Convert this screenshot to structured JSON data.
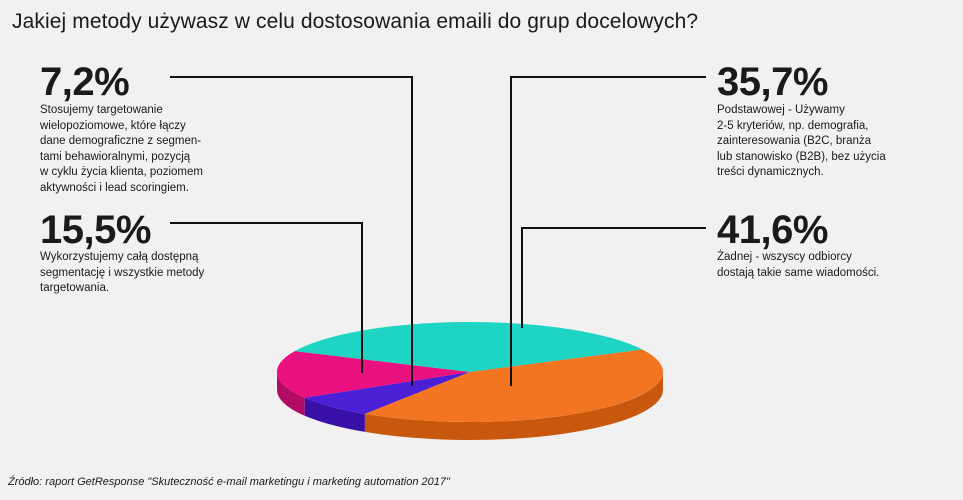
{
  "title": "Jakiej metody używasz w celu dostosowania emaili do grup docelowych?",
  "source": "Źródło: raport GetResponse \"Skuteczność e-mail marketingu i marketing automation 2017\"",
  "chart_data": {
    "type": "pie",
    "unit": "%",
    "slices": [
      {
        "label": "7,2%",
        "value": 7.2,
        "color": "#4a1fd6",
        "side_color": "#3810a8",
        "description": [
          "Stosujemy targetowanie",
          "wielopoziomowe, które łączy",
          "dane demograficzne z segmen-",
          "tami behawioralnymi, pozycją",
          "w cyklu życia klienta, poziomem",
          "aktywności i lead scoringiem."
        ]
      },
      {
        "label": "15,5%",
        "value": 15.5,
        "color": "#e8117f",
        "side_color": "#b00d62",
        "description": [
          "Wykorzystujemy całą dostępną",
          "segmentację i wszystkie metody",
          "targetowania."
        ]
      },
      {
        "label": "35,7%",
        "value": 35.7,
        "color": "#1ed4c2",
        "side_color": "#14a596",
        "description": [
          "Podstawowej - Używamy",
          "2-5 kryteriów, np. demografia,",
          "zainteresowania (B2C, branża",
          "lub stanowisko (B2B), bez użycia",
          "treści dynamicznych."
        ]
      },
      {
        "label": "41,6%",
        "value": 41.6,
        "color": "#f37521",
        "side_color": "#c9580f",
        "description": [
          "Żadnej - wszyscy odbiorcy",
          "dostają takie same wiadomości."
        ]
      }
    ]
  }
}
